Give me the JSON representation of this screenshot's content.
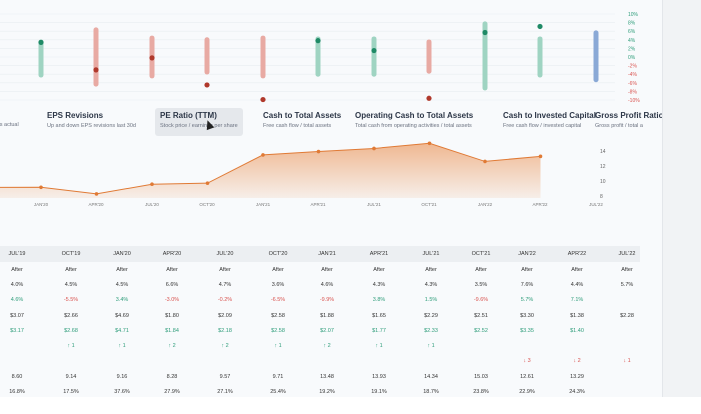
{
  "surprise_chart": {
    "y_axis_ticks": [
      "10%",
      "8%",
      "6%",
      "4%",
      "2%",
      "0%",
      "-2%",
      "-4%",
      "-6%",
      "-8%",
      "-10%"
    ],
    "colors": {
      "positive": "#2e9d7a",
      "negative": "#c0392b",
      "pending": "#8aa9d6"
    },
    "columns": [
      {
        "range": [
          3.5,
          -4.2
        ],
        "actual": 3.4,
        "status": "positive"
      },
      {
        "range": [
          6.3,
          -6.3
        ],
        "actual": -3.0,
        "status": "negative"
      },
      {
        "range": [
          4.4,
          -4.4
        ],
        "actual": -0.2,
        "status": "negative"
      },
      {
        "range": [
          4.0,
          -3.5
        ],
        "actual": -6.5,
        "status": "negative"
      },
      {
        "range": [
          4.4,
          -4.4
        ],
        "actual": -9.9,
        "status": "negative"
      },
      {
        "range": [
          4.2,
          -4.0
        ],
        "actual": 3.8,
        "status": "positive"
      },
      {
        "range": [
          4.2,
          -4.0
        ],
        "actual": 1.5,
        "status": "positive"
      },
      {
        "range": [
          3.5,
          -3.3
        ],
        "actual": -9.6,
        "status": "negative"
      },
      {
        "range": [
          7.7,
          -7.2
        ],
        "actual": 5.7,
        "status": "positive"
      },
      {
        "range": [
          4.2,
          -4.2
        ],
        "actual": 7.1,
        "status": "positive"
      },
      {
        "range": [
          5.6,
          -5.3
        ],
        "actual": null,
        "status": "pending"
      }
    ]
  },
  "metric_cards": [
    {
      "title": "",
      "subtitle": "ss actual"
    },
    {
      "title": "EPS Revisions",
      "subtitle": "Up and down EPS revisions last 30d"
    },
    {
      "title": "PE Ratio (TTM)",
      "subtitle": "Stock price / earnings per share",
      "active": true
    },
    {
      "title": "Cash to Total Assets",
      "subtitle": "Free cash flow / total assets"
    },
    {
      "title": "Operating Cash to Total Assets",
      "subtitle": "Total cash from operating activities / total assets"
    },
    {
      "title": "Cash to Invested Capital",
      "subtitle": "Free cash flow / invested capital"
    },
    {
      "title": "Gross Profit Ratio",
      "subtitle": "Gross profit / total a"
    }
  ],
  "chart_data": {
    "type": "area",
    "x": [
      "OCT'19",
      "JAN'20",
      "APR'20",
      "JUL'20",
      "OCT'20",
      "JAN'21",
      "APR'21",
      "JUL'21",
      "OCT'21",
      "JAN'22",
      "APR'22",
      "JUL'22"
    ],
    "values": [
      9.14,
      9.16,
      8.28,
      9.57,
      9.71,
      13.48,
      13.93,
      14.34,
      15.03,
      12.61,
      13.29,
      null
    ],
    "x_tick_labels": [
      "JAN'20",
      "APR'20",
      "JUL'20",
      "OCT'20",
      "JAN'21",
      "APR'21",
      "JUL'21",
      "OCT'21",
      "JAN'22",
      "APR'22",
      "JUL'22"
    ],
    "y_tick_labels": [
      "14",
      "12",
      "10",
      "8"
    ],
    "ylim": [
      7.5,
      15.5
    ],
    "color": "#e8813a"
  },
  "table": {
    "headers": [
      "JUL'19",
      "OCT'19",
      "JAN'20",
      "APR'20",
      "JUL'20",
      "OCT'20",
      "JAN'21",
      "APR'21",
      "JUL'21",
      "OCT'21",
      "JAN'22",
      "APR'22",
      "JUL'22"
    ],
    "rows": [
      {
        "type": "plain",
        "values": [
          "After",
          "After",
          "After",
          "After",
          "After",
          "After",
          "After",
          "After",
          "After",
          "After",
          "After",
          "After",
          "After"
        ]
      },
      {
        "type": "plain",
        "values": [
          "4.0%",
          "4.5%",
          "4.5%",
          "6.6%",
          "4.7%",
          "3.6%",
          "4.6%",
          "4.3%",
          "4.3%",
          "3.5%",
          "7.6%",
          "4.4%",
          "5.7%"
        ]
      },
      {
        "type": "signed",
        "values": [
          "4.6%",
          "-5.5%",
          "3.4%",
          "-3.0%",
          "-0.2%",
          "-6.5%",
          "-9.9%",
          "3.8%",
          "1.5%",
          "-9.6%",
          "5.7%",
          "7.1%",
          ""
        ]
      },
      {
        "type": "plain",
        "values": [
          "$3.07",
          "$2.66",
          "$4.69",
          "$1.80",
          "$2.09",
          "$2.58",
          "$1.88",
          "$1.65",
          "$2.29",
          "$2.51",
          "$3.30",
          "$1.38",
          "$2.28"
        ]
      },
      {
        "type": "pos",
        "values": [
          "$3.17",
          "$2.68",
          "$4.71",
          "$1.84",
          "$2.18",
          "$2.58",
          "$2.07",
          "$1.77",
          "$2.33",
          "$2.52",
          "$3.35",
          "$1.40",
          ""
        ]
      },
      {
        "type": "up",
        "values": [
          "",
          "↑ 1",
          "↑ 1",
          "↑ 2",
          "↑ 2",
          "↑ 1",
          "↑ 2",
          "↑ 1",
          "↑ 1",
          "",
          "",
          "",
          ""
        ]
      },
      {
        "type": "dn",
        "values": [
          "",
          "",
          "",
          "",
          "",
          "",
          "",
          "",
          "",
          "",
          "↓ 3",
          "↓ 2",
          "↓ 1"
        ]
      },
      {
        "type": "plain",
        "values": [
          "8.60",
          "9.14",
          "9.16",
          "8.28",
          "9.57",
          "9.71",
          "13.48",
          "13.93",
          "14.34",
          "15.03",
          "12.61",
          "13.29",
          ""
        ]
      },
      {
        "type": "plain",
        "values": [
          "16.8%",
          "17.5%",
          "37.6%",
          "27.9%",
          "27.1%",
          "25.4%",
          "19.2%",
          "19.1%",
          "18.7%",
          "23.8%",
          "22.9%",
          "24.3%",
          ""
        ]
      }
    ]
  }
}
